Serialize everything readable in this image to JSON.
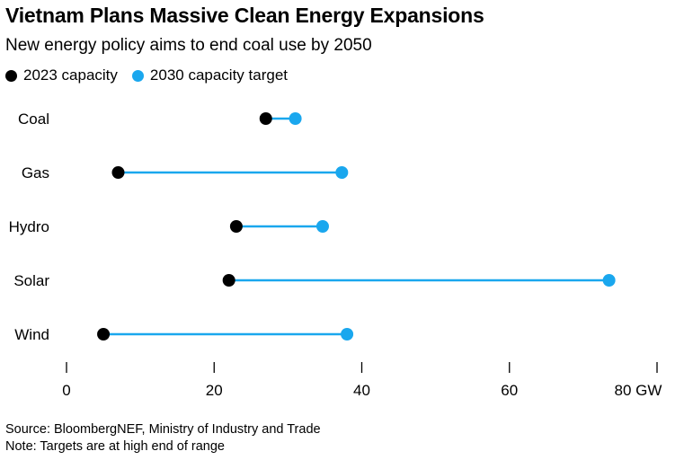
{
  "header": {
    "title": "Vietnam Plans Massive Clean Energy Expansions",
    "subtitle": "New energy policy aims to end coal use by 2050"
  },
  "legend": [
    {
      "label": "2023 capacity",
      "color": "#000000"
    },
    {
      "label": "2030 capacity target",
      "color": "#1aa7ee"
    }
  ],
  "colors": {
    "current": "#000000",
    "target": "#1aa7ee",
    "axis": "#000000"
  },
  "chart_data": {
    "type": "dumbbell",
    "title": "Vietnam Plans Massive Clean Energy Expansions",
    "subtitle": "New energy policy aims to end coal use by 2050",
    "categories": [
      "Coal",
      "Gas",
      "Hydro",
      "Solar",
      "Wind"
    ],
    "series": [
      {
        "name": "2023 capacity",
        "values": [
          27,
          7,
          23,
          22,
          5
        ]
      },
      {
        "name": "2030 capacity target",
        "values": [
          31,
          37.3,
          34.7,
          73.5,
          38
        ]
      }
    ],
    "xlim": [
      0,
      80
    ],
    "x_ticks": [
      0,
      20,
      40,
      60,
      80
    ],
    "x_tick_labels": [
      "0",
      "20",
      "40",
      "60",
      "80 GW"
    ],
    "grid": false,
    "legend_position": "top-left"
  },
  "footer": {
    "source": "Source: BloombergNEF, Ministry of Industry and Trade",
    "note": "Note: Targets are at high end of range"
  }
}
